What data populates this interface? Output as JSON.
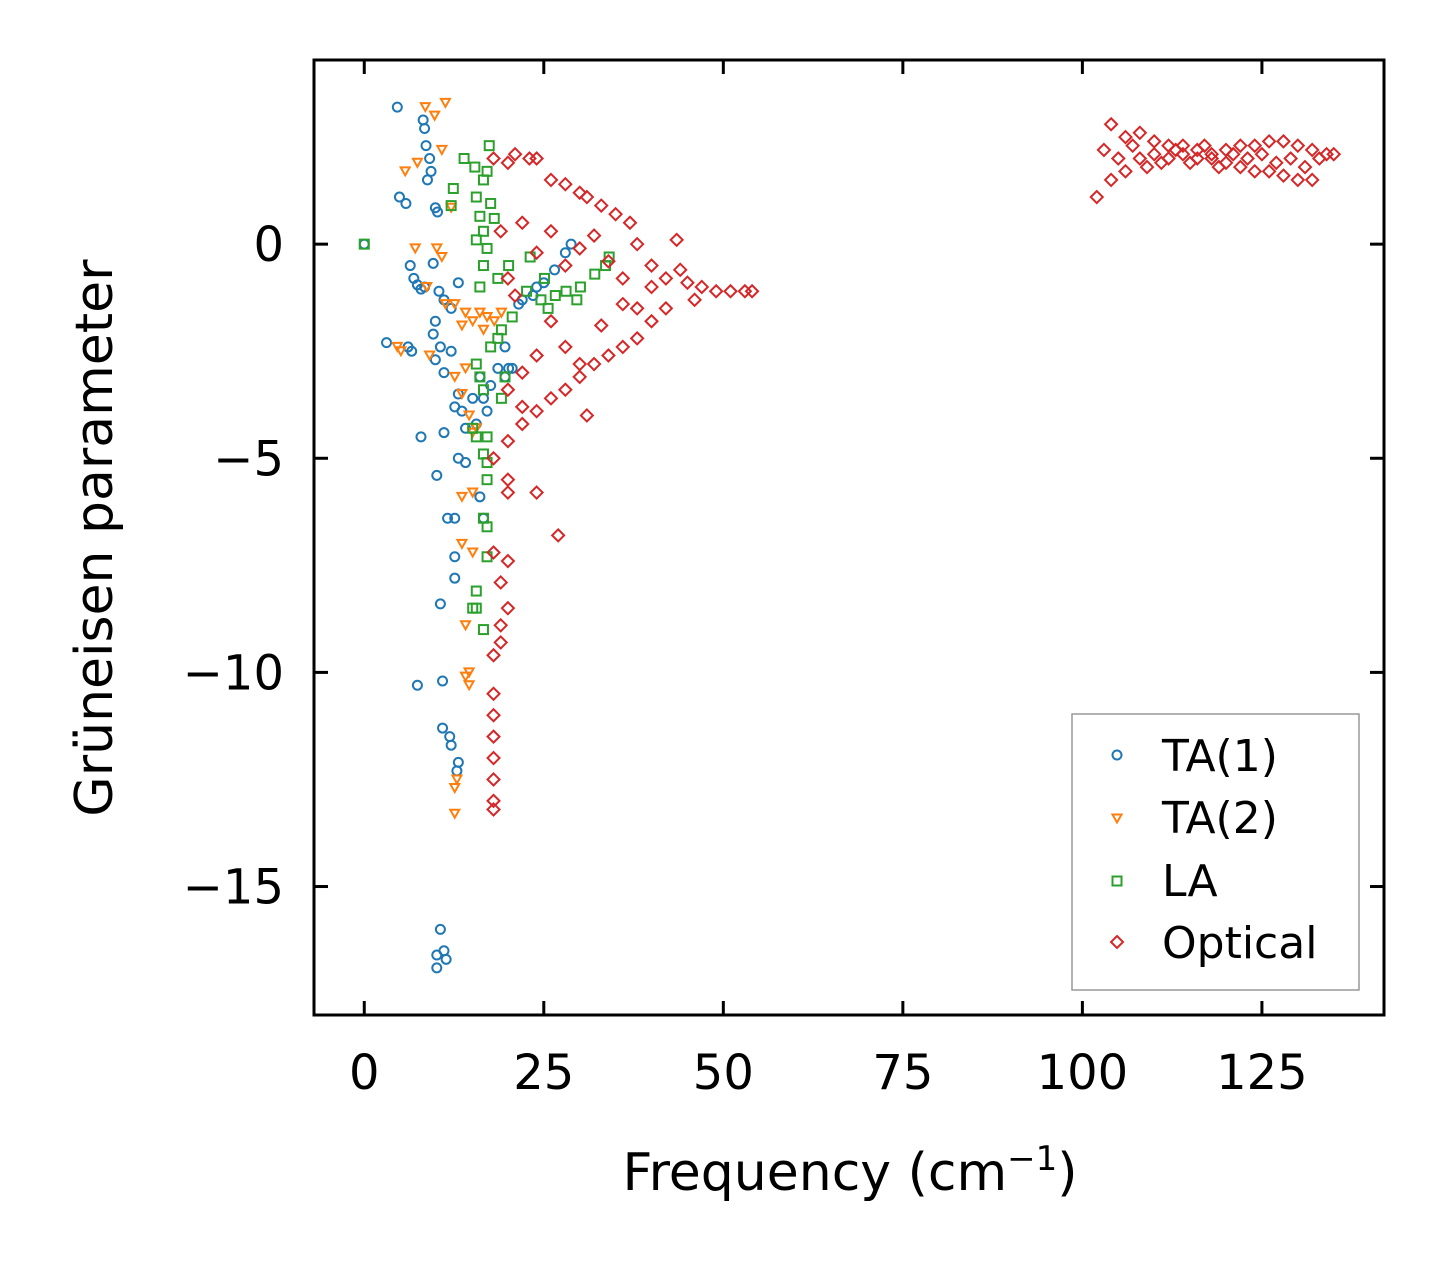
{
  "chart_data": {
    "type": "scatter",
    "title": "",
    "xlabel": "Frequency (cm",
    "xlabel_sup": "−1",
    "xlabel_suffix": ")",
    "ylabel": "Grüneisen parameter",
    "xlim": [
      -7,
      142
    ],
    "ylim": [
      -18,
      4.3
    ],
    "xticks": [
      0,
      25,
      50,
      75,
      100,
      125
    ],
    "xtick_labels": [
      "0",
      "25",
      "50",
      "75",
      "100",
      "125"
    ],
    "yticks": [
      0,
      -5,
      -10,
      -15
    ],
    "ytick_labels": [
      "0",
      "−5",
      "−10",
      "−15"
    ],
    "grid": false,
    "legend_position": "bottom-right",
    "series": [
      {
        "name": "TA(1)",
        "marker": "circle",
        "color": "#1f77b4",
        "points": [
          [
            0,
            0
          ],
          [
            4.6,
            3.2
          ],
          [
            8.2,
            2.9
          ],
          [
            8.4,
            2.7
          ],
          [
            8.6,
            2.3
          ],
          [
            9.1,
            2.0
          ],
          [
            9.3,
            1.7
          ],
          [
            8.8,
            1.5
          ],
          [
            4.9,
            1.1
          ],
          [
            5.8,
            0.95
          ],
          [
            9.9,
            0.85
          ],
          [
            10.2,
            0.75
          ],
          [
            6.4,
            -0.5
          ],
          [
            6.9,
            -0.8
          ],
          [
            7.4,
            -0.95
          ],
          [
            7.9,
            -1.05
          ],
          [
            9.6,
            -0.45
          ],
          [
            8.4,
            -1.0
          ],
          [
            10.4,
            -1.1
          ],
          [
            13.1,
            -0.9
          ],
          [
            11.1,
            -1.3
          ],
          [
            12.1,
            -1.5
          ],
          [
            9.9,
            -1.8
          ],
          [
            9.6,
            -2.1
          ],
          [
            3.1,
            -2.3
          ],
          [
            6.1,
            -2.4
          ],
          [
            6.6,
            -2.5
          ],
          [
            10.6,
            -2.4
          ],
          [
            12.1,
            -2.5
          ],
          [
            9.9,
            -2.7
          ],
          [
            11.1,
            -3.0
          ],
          [
            13.1,
            -3.5
          ],
          [
            12.6,
            -3.8
          ],
          [
            13.6,
            -3.9
          ],
          [
            15.1,
            -3.6
          ],
          [
            15.6,
            -4.2
          ],
          [
            14.1,
            -4.3
          ],
          [
            7.9,
            -4.5
          ],
          [
            11.1,
            -4.4
          ],
          [
            13.1,
            -5.0
          ],
          [
            14.1,
            -5.1
          ],
          [
            10.1,
            -5.4
          ],
          [
            11.6,
            -6.4
          ],
          [
            12.6,
            -6.4
          ],
          [
            12.6,
            -7.3
          ],
          [
            12.6,
            -7.8
          ],
          [
            10.6,
            -8.4
          ],
          [
            7.4,
            -10.3
          ],
          [
            10.9,
            -10.2
          ],
          [
            10.9,
            -11.3
          ],
          [
            11.9,
            -11.5
          ],
          [
            12.1,
            -11.7
          ],
          [
            13.1,
            -12.1
          ],
          [
            12.9,
            -12.3
          ],
          [
            10.6,
            -16.0
          ],
          [
            10.1,
            -16.6
          ],
          [
            11.1,
            -16.5
          ],
          [
            11.4,
            -16.7
          ],
          [
            10.1,
            -16.9
          ],
          [
            22.0,
            -1.3
          ],
          [
            23.5,
            -1.2
          ],
          [
            25.0,
            -0.9
          ],
          [
            26.5,
            -0.6
          ],
          [
            28.0,
            -0.2
          ],
          [
            28.8,
            0.0
          ],
          [
            24.0,
            -1.0
          ],
          [
            21.5,
            -1.4
          ],
          [
            17.6,
            -3.3
          ],
          [
            19.6,
            -2.4
          ],
          [
            20.1,
            -2.9
          ],
          [
            18.6,
            -2.9
          ],
          [
            16.1,
            -3.1
          ],
          [
            16.6,
            -3.6
          ],
          [
            17.1,
            -3.9
          ],
          [
            16.1,
            -5.9
          ],
          [
            16.6,
            -6.4
          ],
          [
            19.6,
            -3.1
          ],
          [
            20.6,
            -2.9
          ]
        ]
      },
      {
        "name": "TA(2)",
        "marker": "triangle-down",
        "color": "#ff7f0e",
        "points": [
          [
            8.5,
            3.2
          ],
          [
            11.3,
            3.3
          ],
          [
            9.8,
            3.0
          ],
          [
            10.8,
            2.2
          ],
          [
            5.7,
            1.7
          ],
          [
            7.4,
            1.9
          ],
          [
            12.1,
            0.85
          ],
          [
            7.1,
            -0.1
          ],
          [
            10.1,
            -0.1
          ],
          [
            10.8,
            -0.3
          ],
          [
            8.7,
            -1.0
          ],
          [
            11.3,
            -1.4
          ],
          [
            12.6,
            -1.4
          ],
          [
            14.1,
            -1.6
          ],
          [
            13.6,
            -1.9
          ],
          [
            15.1,
            -1.8
          ],
          [
            16.1,
            -1.6
          ],
          [
            17.1,
            -1.7
          ],
          [
            18.1,
            -1.8
          ],
          [
            19.1,
            -1.6
          ],
          [
            16.6,
            -2.0
          ],
          [
            4.6,
            -2.4
          ],
          [
            5.1,
            -2.5
          ],
          [
            9.1,
            -2.6
          ],
          [
            12.6,
            -3.1
          ],
          [
            14.1,
            -2.9
          ],
          [
            13.6,
            -3.5
          ],
          [
            14.6,
            -4.0
          ],
          [
            15.1,
            -4.4
          ],
          [
            15.6,
            -4.3
          ],
          [
            13.6,
            -5.9
          ],
          [
            15.1,
            -5.8
          ],
          [
            13.6,
            -7.0
          ],
          [
            15.1,
            -7.2
          ],
          [
            14.1,
            -8.9
          ],
          [
            14.6,
            -10.0
          ],
          [
            14.1,
            -10.1
          ],
          [
            14.6,
            -10.3
          ],
          [
            12.9,
            -12.5
          ],
          [
            12.6,
            -12.7
          ],
          [
            12.6,
            -13.3
          ]
        ]
      },
      {
        "name": "LA",
        "marker": "square",
        "color": "#2ca02c",
        "points": [
          [
            0,
            0
          ],
          [
            17.4,
            2.3
          ],
          [
            13.9,
            2.0
          ],
          [
            15.4,
            1.8
          ],
          [
            17.1,
            1.7
          ],
          [
            16.6,
            1.5
          ],
          [
            12.4,
            1.3
          ],
          [
            15.6,
            1.1
          ],
          [
            17.6,
            0.95
          ],
          [
            12.1,
            0.9
          ],
          [
            16.1,
            0.65
          ],
          [
            18.1,
            0.6
          ],
          [
            16.6,
            0.3
          ],
          [
            15.6,
            0.1
          ],
          [
            17.1,
            -0.1
          ],
          [
            16.6,
            -0.5
          ],
          [
            16.1,
            -1.0
          ],
          [
            18.6,
            -0.8
          ],
          [
            20.1,
            -0.5
          ],
          [
            22.6,
            -1.1
          ],
          [
            24.6,
            -1.3
          ],
          [
            26.6,
            -1.2
          ],
          [
            28.1,
            -1.1
          ],
          [
            30.1,
            -1.0
          ],
          [
            32.1,
            -0.7
          ],
          [
            33.6,
            -0.5
          ],
          [
            34.1,
            -0.3
          ],
          [
            29.6,
            -1.3
          ],
          [
            25.6,
            -1.5
          ],
          [
            20.6,
            -1.7
          ],
          [
            19.1,
            -2.0
          ],
          [
            18.6,
            -2.2
          ],
          [
            17.6,
            -2.4
          ],
          [
            15.6,
            -2.8
          ],
          [
            16.1,
            -3.1
          ],
          [
            19.6,
            -3.1
          ],
          [
            16.6,
            -3.4
          ],
          [
            19.1,
            -3.6
          ],
          [
            15.1,
            -4.3
          ],
          [
            15.6,
            -4.5
          ],
          [
            17.1,
            -4.5
          ],
          [
            16.6,
            -4.9
          ],
          [
            17.1,
            -5.1
          ],
          [
            17.1,
            -5.5
          ],
          [
            16.6,
            -6.4
          ],
          [
            17.1,
            -6.6
          ],
          [
            17.1,
            -7.3
          ],
          [
            15.6,
            -8.1
          ],
          [
            15.6,
            -8.5
          ],
          [
            15.1,
            -8.5
          ],
          [
            16.6,
            -9.0
          ],
          [
            23.1,
            -0.3
          ],
          [
            25.1,
            -0.8
          ]
        ]
      },
      {
        "name": "Optical",
        "marker": "diamond",
        "color": "#d62728",
        "points": [
          [
            18,
            2.0
          ],
          [
            20,
            1.9
          ],
          [
            21,
            2.1
          ],
          [
            23,
            2.0
          ],
          [
            24,
            2.0
          ],
          [
            26,
            1.5
          ],
          [
            28,
            1.4
          ],
          [
            30,
            1.2
          ],
          [
            31,
            1.1
          ],
          [
            33,
            0.9
          ],
          [
            35,
            0.7
          ],
          [
            37,
            0.5
          ],
          [
            38,
            0.0
          ],
          [
            40,
            -0.5
          ],
          [
            42,
            -0.8
          ],
          [
            43.5,
            0.1
          ],
          [
            44,
            -0.6
          ],
          [
            45,
            -0.9
          ],
          [
            47,
            -1.0
          ],
          [
            49,
            -1.1
          ],
          [
            51,
            -1.1
          ],
          [
            53,
            -1.1
          ],
          [
            54,
            -1.1
          ],
          [
            46,
            -1.3
          ],
          [
            42,
            -1.5
          ],
          [
            40,
            -1.8
          ],
          [
            38,
            -2.2
          ],
          [
            36,
            -2.4
          ],
          [
            34,
            -2.6
          ],
          [
            32,
            -2.8
          ],
          [
            30,
            -3.1
          ],
          [
            28,
            -3.4
          ],
          [
            26,
            -3.6
          ],
          [
            24,
            -3.9
          ],
          [
            22,
            -4.2
          ],
          [
            20,
            -4.6
          ],
          [
            18,
            -5.0
          ],
          [
            20,
            -5.5
          ],
          [
            20,
            -5.8
          ],
          [
            24,
            -5.8
          ],
          [
            27,
            -6.8
          ],
          [
            18,
            -7.2
          ],
          [
            20,
            -7.4
          ],
          [
            19,
            -7.9
          ],
          [
            20,
            -8.5
          ],
          [
            19,
            -8.9
          ],
          [
            19,
            -9.3
          ],
          [
            18,
            -9.6
          ],
          [
            18,
            -10.5
          ],
          [
            18,
            -11.0
          ],
          [
            18,
            -11.5
          ],
          [
            18,
            -12.0
          ],
          [
            18,
            -12.5
          ],
          [
            18,
            -13.0
          ],
          [
            18,
            -13.2
          ],
          [
            22,
            0.5
          ],
          [
            24,
            -0.2
          ],
          [
            26,
            0.3
          ],
          [
            28,
            -0.5
          ],
          [
            30,
            -0.1
          ],
          [
            32,
            0.2
          ],
          [
            34,
            -0.4
          ],
          [
            36,
            -0.8
          ],
          [
            26,
            -1.8
          ],
          [
            28,
            -2.4
          ],
          [
            30,
            -2.8
          ],
          [
            24,
            -2.6
          ],
          [
            22,
            -3.0
          ],
          [
            20,
            -3.4
          ],
          [
            22,
            -3.8
          ],
          [
            31,
            -4.0
          ],
          [
            19,
            0.3
          ],
          [
            20,
            -0.8
          ],
          [
            21,
            -1.2
          ],
          [
            36,
            -1.4
          ],
          [
            38,
            -1.5
          ],
          [
            40,
            -1.0
          ],
          [
            33,
            -1.9
          ],
          [
            104,
            2.8
          ],
          [
            106,
            2.5
          ],
          [
            108,
            2.6
          ],
          [
            110,
            2.4
          ],
          [
            112,
            2.3
          ],
          [
            114,
            2.3
          ],
          [
            116,
            2.2
          ],
          [
            118,
            2.1
          ],
          [
            120,
            2.2
          ],
          [
            122,
            2.3
          ],
          [
            124,
            2.3
          ],
          [
            126,
            2.4
          ],
          [
            128,
            2.4
          ],
          [
            130,
            2.3
          ],
          [
            132,
            2.2
          ],
          [
            134,
            2.1
          ],
          [
            135,
            2.1
          ],
          [
            102,
            1.1
          ],
          [
            104,
            1.5
          ],
          [
            106,
            1.7
          ],
          [
            108,
            2.0
          ],
          [
            110,
            2.1
          ],
          [
            112,
            2.0
          ],
          [
            114,
            2.1
          ],
          [
            116,
            2.0
          ],
          [
            118,
            2.0
          ],
          [
            120,
            1.9
          ],
          [
            122,
            1.8
          ],
          [
            124,
            1.7
          ],
          [
            126,
            1.7
          ],
          [
            128,
            1.6
          ],
          [
            130,
            1.5
          ],
          [
            132,
            1.5
          ],
          [
            103,
            2.2
          ],
          [
            105,
            2.0
          ],
          [
            107,
            2.3
          ],
          [
            109,
            1.8
          ],
          [
            111,
            1.9
          ],
          [
            113,
            2.2
          ],
          [
            115,
            1.9
          ],
          [
            117,
            2.3
          ],
          [
            119,
            1.8
          ],
          [
            121,
            2.1
          ],
          [
            123,
            2.0
          ],
          [
            125,
            2.1
          ],
          [
            127,
            1.9
          ],
          [
            129,
            2.0
          ],
          [
            131,
            1.8
          ],
          [
            133,
            2.0
          ]
        ]
      }
    ]
  }
}
